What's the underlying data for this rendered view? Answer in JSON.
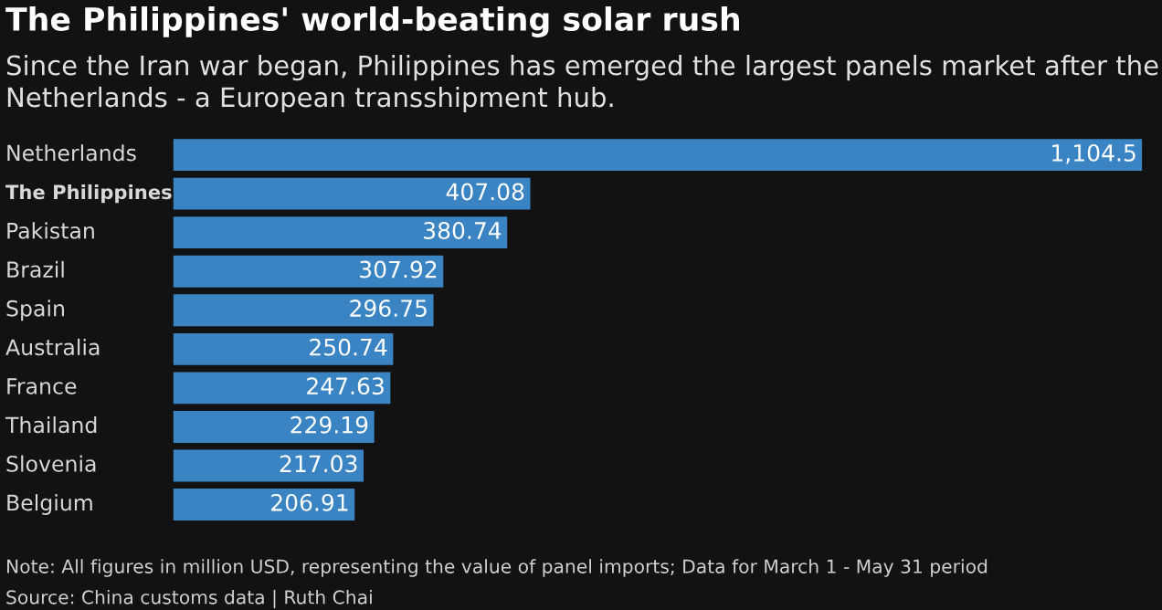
{
  "chart_data": {
    "type": "bar",
    "orientation": "horizontal",
    "title": "The Philippines' world-beating solar rush",
    "subtitle": "Since the Iran war began, Philippines has emerged the largest panels market after the Netherlands - a European transshipment hub.",
    "categories": [
      "Netherlands",
      "The Philippines",
      "Pakistan",
      "Brazil",
      "Spain",
      "Australia",
      "France",
      "Thailand",
      "Slovenia",
      "Belgium"
    ],
    "values": [
      1104.5,
      407.08,
      380.74,
      307.92,
      296.75,
      250.74,
      247.63,
      229.19,
      217.03,
      206.91
    ],
    "value_labels": [
      "1,104.5",
      "407.08",
      "380.74",
      "307.92",
      "296.75",
      "250.74",
      "247.63",
      "229.19",
      "217.03",
      "206.91"
    ],
    "color": "#3a84c4",
    "annotations": [
      "Note: All figures in million USD, representing the value of panel imports; Data for March 1 - May 31 period",
      "Source: China customs data | Ruth Chai"
    ],
    "grid": false,
    "legend": false,
    "tick_labels": false
  }
}
